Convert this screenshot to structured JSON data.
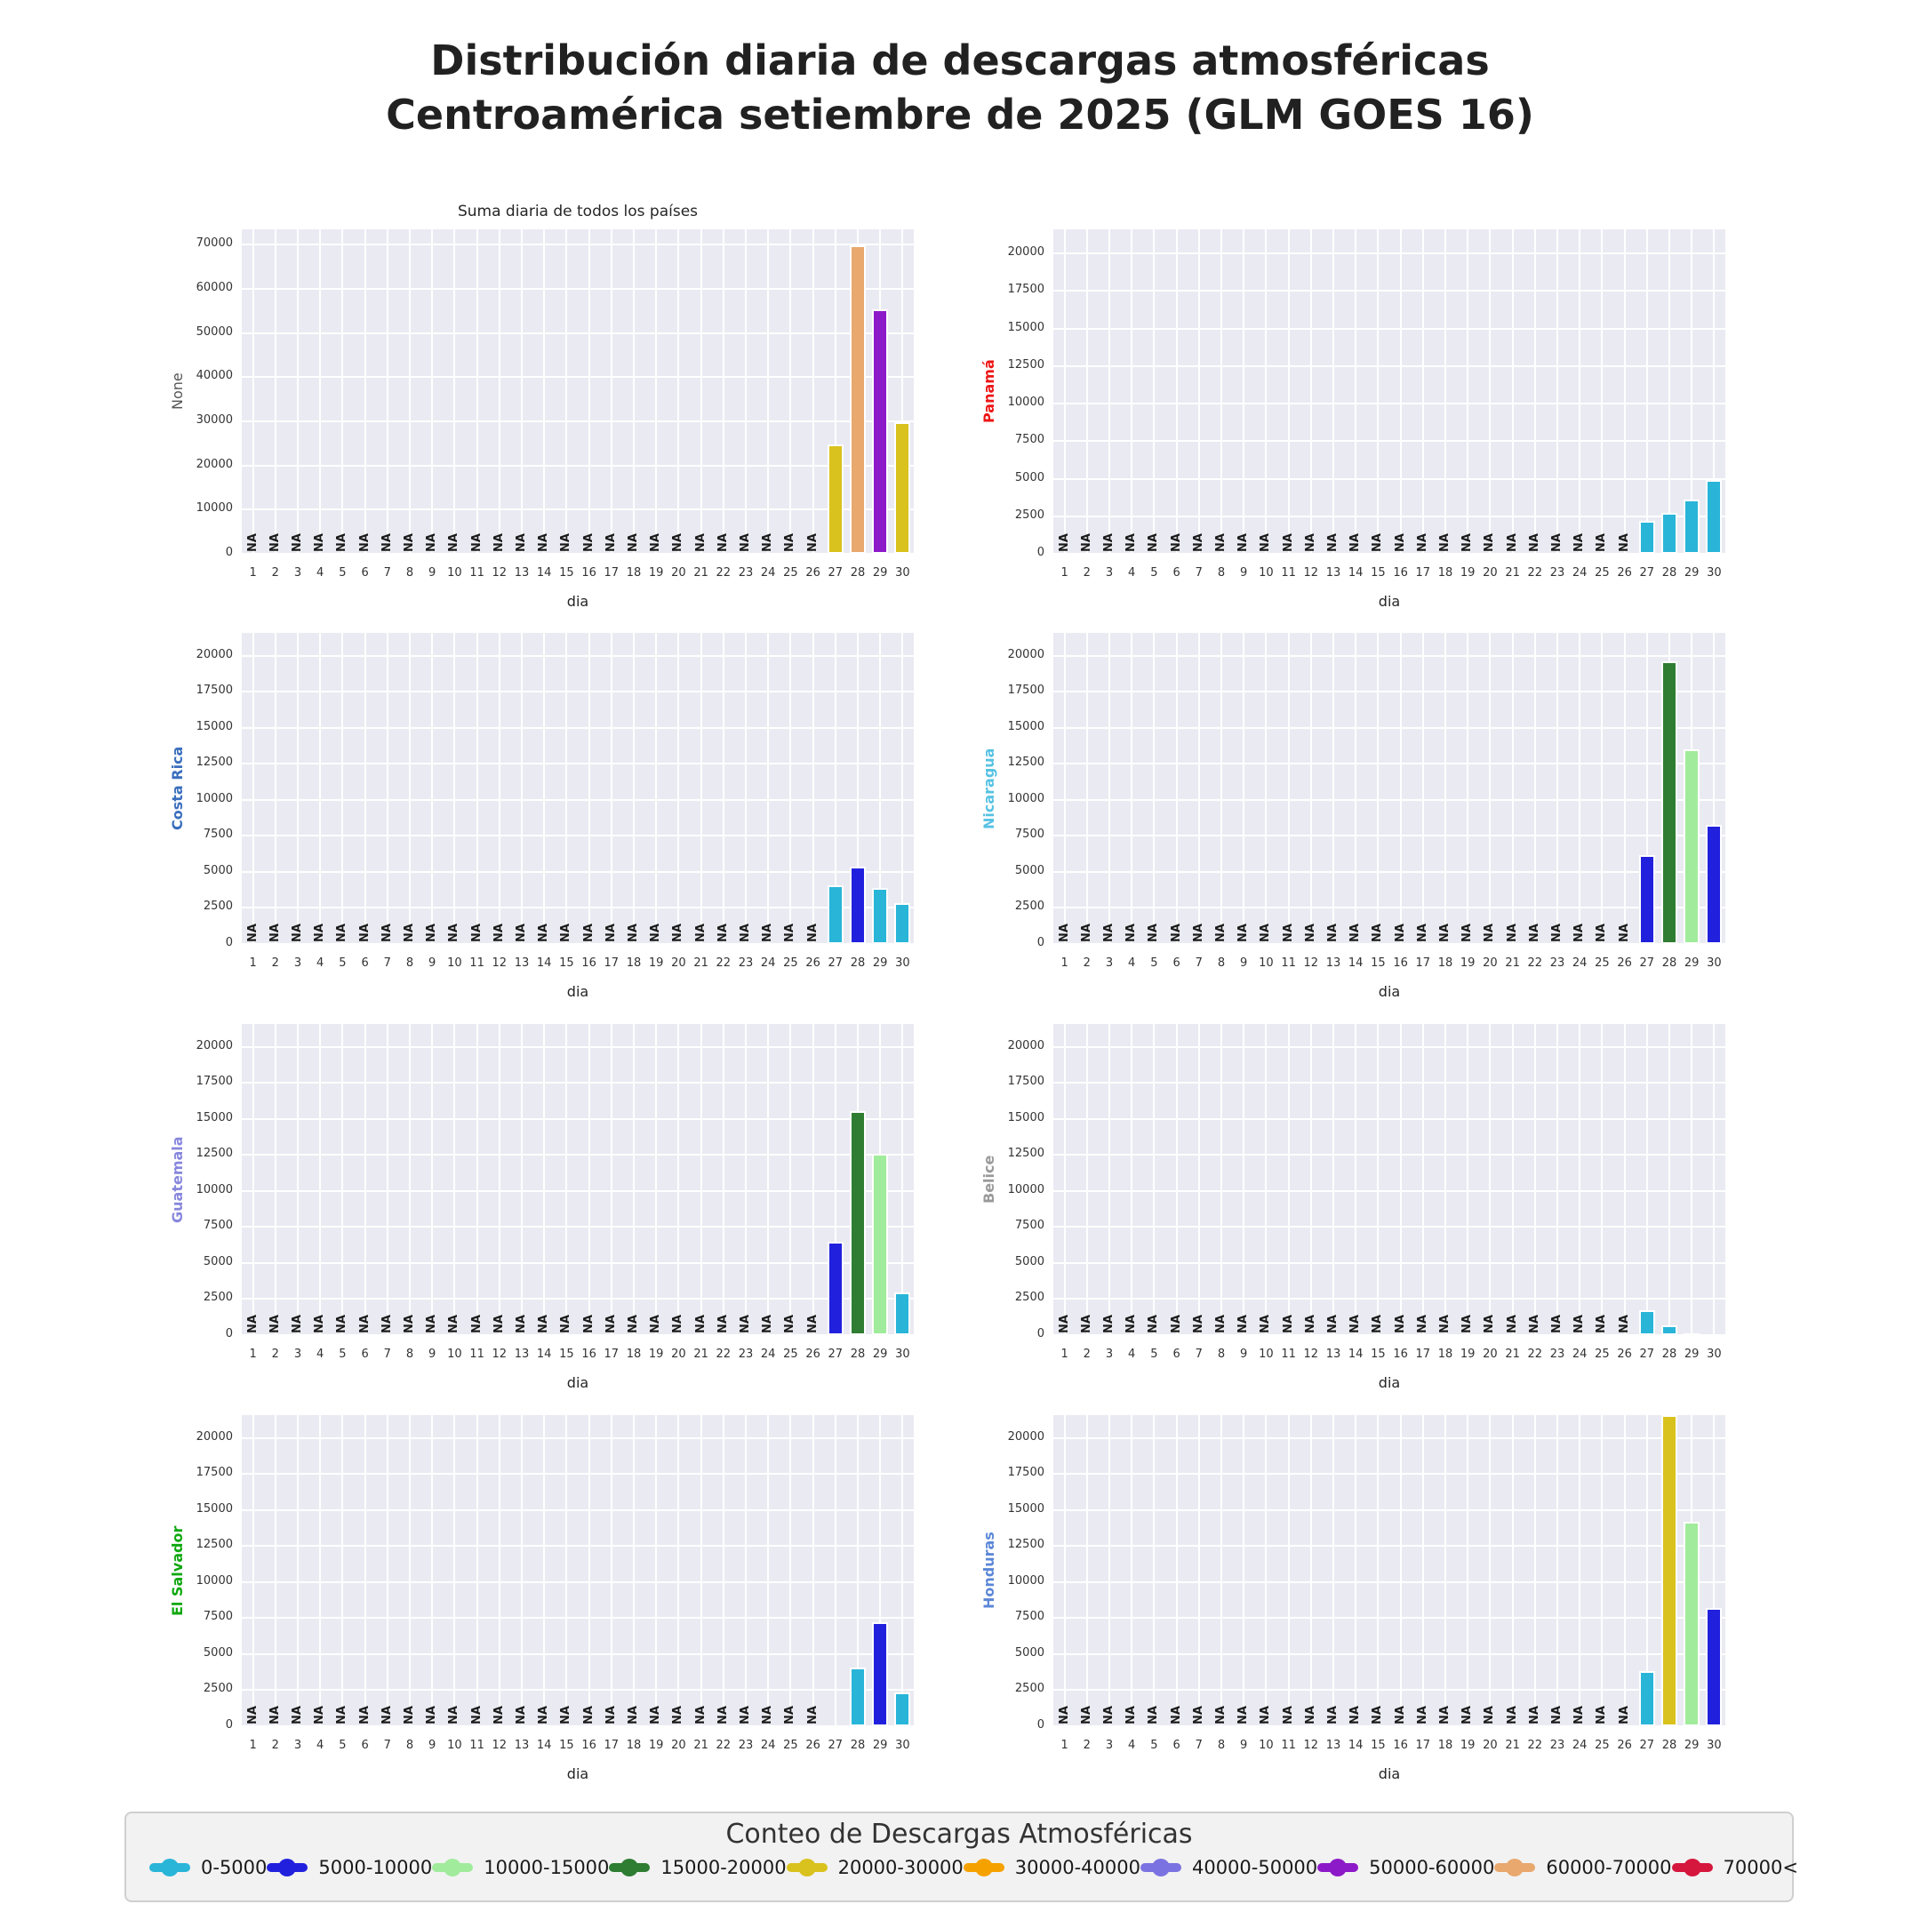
{
  "title": {
    "line1": "Distribución diaria de descargas atmosféricas",
    "line2": "Centroamérica setiembre de 2025 (GLM GOES 16)"
  },
  "na_label": "NA",
  "legend": {
    "title": "Conteo de Descargas Atmosféricas",
    "entries": [
      {
        "label": "0-5000",
        "color": "#29b5d8"
      },
      {
        "label": "5000-10000",
        "color": "#2121dd"
      },
      {
        "label": "10000-15000",
        "color": "#a1eb9c"
      },
      {
        "label": "15000-20000",
        "color": "#2e7d32"
      },
      {
        "label": "20000-30000",
        "color": "#d9c21d"
      },
      {
        "label": "30000-40000",
        "color": "#f5a201"
      },
      {
        "label": "40000-50000",
        "color": "#7b72e2"
      },
      {
        "label": "50000-60000",
        "color": "#8d1ac8"
      },
      {
        "label": "60000-70000",
        "color": "#e8a86e"
      },
      {
        "label": "70000<",
        "color": "#d5173e"
      }
    ]
  },
  "chart_data": {
    "type": "bar",
    "x_label": "dia",
    "x_days": [
      1,
      2,
      3,
      4,
      5,
      6,
      7,
      8,
      9,
      10,
      11,
      12,
      13,
      14,
      15,
      16,
      17,
      18,
      19,
      20,
      21,
      22,
      23,
      24,
      25,
      26,
      27,
      28,
      29,
      30
    ],
    "na_days": [
      1,
      2,
      3,
      4,
      5,
      6,
      7,
      8,
      9,
      10,
      11,
      12,
      13,
      14,
      15,
      16,
      17,
      18,
      19,
      20,
      21,
      22,
      23,
      24,
      25,
      26
    ],
    "grid": true,
    "panels": [
      {
        "key": "suma",
        "title": "Suma diaria de todos los países",
        "ylabel": "None",
        "ylabel_color": "#555555",
        "ylabel_bold": false,
        "ylim": [
          0,
          73500
        ],
        "yticks": [
          0,
          10000,
          20000,
          30000,
          40000,
          50000,
          60000,
          70000
        ],
        "bars": [
          {
            "day": 27,
            "value": 24800,
            "range": "20000-30000"
          },
          {
            "day": 28,
            "value": 69800,
            "range": "60000-70000"
          },
          {
            "day": 29,
            "value": 55400,
            "range": "50000-60000"
          },
          {
            "day": 30,
            "value": 29800,
            "range": "20000-30000"
          }
        ]
      },
      {
        "key": "panama",
        "title": "",
        "ylabel": "Panamá",
        "ylabel_color": "#ed1515",
        "ylabel_bold": true,
        "ylim": [
          0,
          21600
        ],
        "yticks": [
          0,
          2500,
          5000,
          7500,
          10000,
          12500,
          15000,
          17500,
          20000
        ],
        "bars": [
          {
            "day": 27,
            "value": 2200,
            "range": "0-5000"
          },
          {
            "day": 28,
            "value": 2750,
            "range": "0-5000"
          },
          {
            "day": 29,
            "value": 3600,
            "range": "0-5000"
          },
          {
            "day": 30,
            "value": 4900,
            "range": "0-5000"
          }
        ]
      },
      {
        "key": "costa-rica",
        "title": "",
        "ylabel": "Costa Rica",
        "ylabel_color": "#3a6ebd",
        "ylabel_bold": true,
        "ylim": [
          0,
          21600
        ],
        "yticks": [
          0,
          2500,
          5000,
          7500,
          10000,
          12500,
          15000,
          17500,
          20000
        ],
        "bars": [
          {
            "day": 27,
            "value": 4100,
            "range": "0-5000"
          },
          {
            "day": 28,
            "value": 5400,
            "range": "5000-10000"
          },
          {
            "day": 29,
            "value": 3900,
            "range": "0-5000"
          },
          {
            "day": 30,
            "value": 2850,
            "range": "0-5000"
          }
        ]
      },
      {
        "key": "nicaragua",
        "title": "",
        "ylabel": "Nicaragua",
        "ylabel_color": "#56c2e3",
        "ylabel_bold": true,
        "ylim": [
          0,
          21600
        ],
        "yticks": [
          0,
          2500,
          5000,
          7500,
          10000,
          12500,
          15000,
          17500,
          20000
        ],
        "bars": [
          {
            "day": 27,
            "value": 6200,
            "range": "5000-10000"
          },
          {
            "day": 28,
            "value": 19600,
            "range": "15000-20000"
          },
          {
            "day": 29,
            "value": 13500,
            "range": "10000-15000"
          },
          {
            "day": 30,
            "value": 8300,
            "range": "5000-10000"
          }
        ]
      },
      {
        "key": "guatemala",
        "title": "",
        "ylabel": "Guatemala",
        "ylabel_color": "#8787dd",
        "ylabel_bold": true,
        "ylim": [
          0,
          21600
        ],
        "yticks": [
          0,
          2500,
          5000,
          7500,
          10000,
          12500,
          15000,
          17500,
          20000
        ],
        "bars": [
          {
            "day": 27,
            "value": 6450,
            "range": "5000-10000"
          },
          {
            "day": 28,
            "value": 15550,
            "range": "15000-20000"
          },
          {
            "day": 29,
            "value": 12600,
            "range": "10000-15000"
          },
          {
            "day": 30,
            "value": 2950,
            "range": "0-5000"
          }
        ]
      },
      {
        "key": "belice",
        "title": "",
        "ylabel": "Belice",
        "ylabel_color": "#9a9a9a",
        "ylabel_bold": true,
        "ylim": [
          0,
          21600
        ],
        "yticks": [
          0,
          2500,
          5000,
          7500,
          10000,
          12500,
          15000,
          17500,
          20000
        ],
        "bars": [
          {
            "day": 27,
            "value": 1750,
            "range": "0-5000"
          },
          {
            "day": 28,
            "value": 650,
            "range": "0-5000"
          },
          {
            "day": 29,
            "value": 120,
            "range": "0-5000"
          },
          {
            "day": 30,
            "value": 15,
            "range": "0-5000"
          }
        ]
      },
      {
        "key": "el-salvador",
        "title": "",
        "ylabel": "El Salvador",
        "ylabel_color": "#0fa80f",
        "ylabel_bold": true,
        "ylim": [
          0,
          21600
        ],
        "yticks": [
          0,
          2500,
          5000,
          7500,
          10000,
          12500,
          15000,
          17500,
          20000
        ],
        "bars": [
          {
            "day": 27,
            "value": 40,
            "range": "0-5000"
          },
          {
            "day": 28,
            "value": 4050,
            "range": "0-5000"
          },
          {
            "day": 29,
            "value": 7250,
            "range": "5000-10000"
          },
          {
            "day": 30,
            "value": 2350,
            "range": "0-5000"
          }
        ]
      },
      {
        "key": "honduras",
        "title": "",
        "ylabel": "Honduras",
        "ylabel_color": "#5b87d8",
        "ylabel_bold": true,
        "ylim": [
          0,
          21600
        ],
        "yticks": [
          0,
          2500,
          5000,
          7500,
          10000,
          12500,
          15000,
          17500,
          20000
        ],
        "bars": [
          {
            "day": 27,
            "value": 3850,
            "range": "0-5000"
          },
          {
            "day": 28,
            "value": 21800,
            "range": "20000-30000",
            "clipped": true
          },
          {
            "day": 29,
            "value": 14200,
            "range": "10000-15000"
          },
          {
            "day": 30,
            "value": 8200,
            "range": "5000-10000"
          }
        ]
      }
    ]
  }
}
